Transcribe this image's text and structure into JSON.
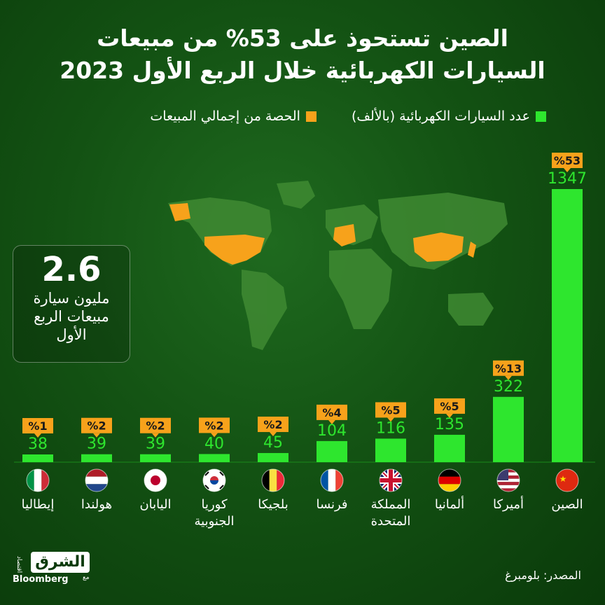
{
  "title_line1": "الصين تستحوذ على 53% من مبيعات",
  "title_line2": "السيارات الكهربائية خلال الربع الأول 2023",
  "legend": {
    "count_label": "عدد السيارات الكهربائية (بالألف)",
    "share_label": "الحصة من إجمالي المبيعات",
    "count_color": "#2ee62e",
    "share_color": "#f7a21b"
  },
  "callout": {
    "value": "2.6",
    "line1": "مليون سيارة",
    "line2": "مبيعات الربع",
    "line3": "الأول"
  },
  "chart_data": {
    "type": "bar",
    "categories": [
      "الصين",
      "أميركا",
      "ألمانيا",
      "المملكة المتحدة",
      "فرنسا",
      "بلجيكا",
      "كوريا الجنوبية",
      "اليابان",
      "هولندا",
      "إيطاليا"
    ],
    "values": [
      1347,
      322,
      135,
      116,
      104,
      45,
      40,
      39,
      39,
      38
    ],
    "shares": [
      "%53",
      "%13",
      "%5",
      "%5",
      "%4",
      "%2",
      "%2",
      "%2",
      "%2",
      "%1"
    ],
    "category_lines": [
      [
        "الصين"
      ],
      [
        "أميركا"
      ],
      [
        "ألمانيا"
      ],
      [
        "المملكة",
        "المتحدة"
      ],
      [
        "فرنسا"
      ],
      [
        "بلجيكا"
      ],
      [
        "كوريا",
        "الجنوبية"
      ],
      [
        "اليابان"
      ],
      [
        "هولندا"
      ],
      [
        "إيطاليا"
      ]
    ],
    "flags": [
      "china-flag",
      "usa-flag",
      "germany-flag",
      "uk-flag",
      "france-flag",
      "belgium-flag",
      "south-korea-flag",
      "japan-flag",
      "netherlands-flag",
      "italy-flag"
    ],
    "bar_color": "#2ee62e",
    "share_color": "#f7a21b"
  },
  "source": "المصدر: بلومبرغ",
  "logo": {
    "main": "الشرق",
    "sub": "Bloomberg",
    "with": "مع",
    "tag": "اقتصاد"
  }
}
